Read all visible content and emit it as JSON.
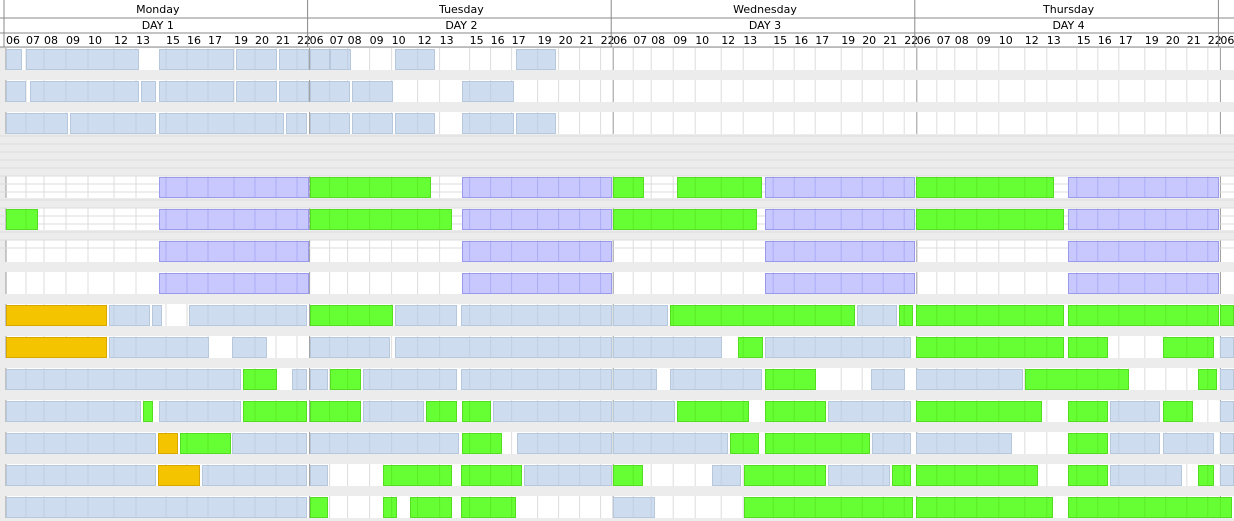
{
  "header": {
    "days": [
      {
        "name": "Monday",
        "label": "DAY 1"
      },
      {
        "name": "Tuesday",
        "label": "DAY 2"
      },
      {
        "name": "Wednesday",
        "label": "DAY 3"
      },
      {
        "name": "Thursday",
        "label": "DAY 4"
      }
    ],
    "hours": [
      "06",
      "07",
      "08",
      "09",
      "10",
      "12",
      "13",
      "15",
      "16",
      "17",
      "19",
      "20",
      "21",
      "22"
    ]
  }
}
